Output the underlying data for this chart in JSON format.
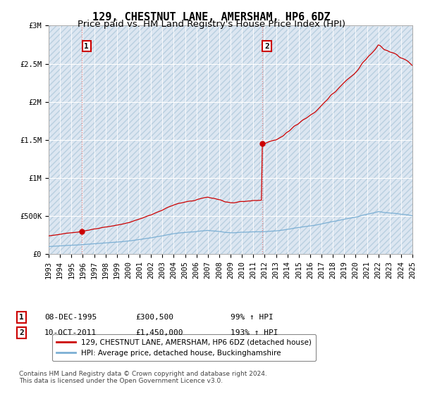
{
  "title": "129, CHESTNUT LANE, AMERSHAM, HP6 6DZ",
  "subtitle": "Price paid vs. HM Land Registry's House Price Index (HPI)",
  "sale1_date": 1995.92,
  "sale1_price": 300500,
  "sale1_label": "1",
  "sale1_text": "08-DEC-1995",
  "sale1_price_str": "£300,500",
  "sale1_hpi_str": "99% ↑ HPI",
  "sale2_date": 2011.78,
  "sale2_price": 1450000,
  "sale2_label": "2",
  "sale2_text": "10-OCT-2011",
  "sale2_price_str": "£1,450,000",
  "sale2_hpi_str": "193% ↑ HPI",
  "legend_property": "129, CHESTNUT LANE, AMERSHAM, HP6 6DZ (detached house)",
  "legend_hpi": "HPI: Average price, detached house, Buckinghamshire",
  "footer": "Contains HM Land Registry data © Crown copyright and database right 2024.\nThis data is licensed under the Open Government Licence v3.0.",
  "ylim": [
    0,
    3000000
  ],
  "xlim": [
    1993,
    2025
  ],
  "background_color": "#ffffff",
  "plot_bg_color": "#dce6f1",
  "hatch_color": "#b8cfe0",
  "line_color_property": "#cc0000",
  "line_color_hpi": "#7bafd4",
  "marker_color": "#cc0000",
  "vline_color": "#e08080",
  "title_fontsize": 11,
  "subtitle_fontsize": 9.5,
  "tick_fontsize": 7.5
}
